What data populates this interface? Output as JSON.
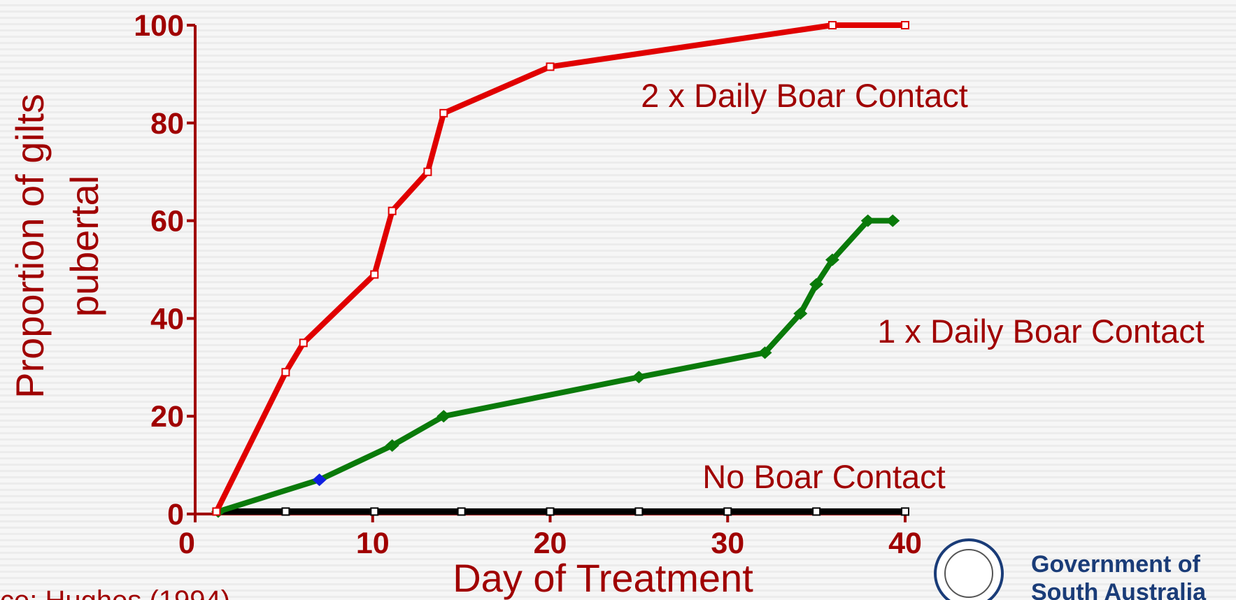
{
  "chart_data": {
    "type": "line",
    "xlabel": "Day of Treatment",
    "ylabel": [
      "Proportion of gilts",
      "pubertal"
    ],
    "xlim": [
      0,
      40
    ],
    "xticks": [
      0,
      10,
      20,
      30,
      40
    ],
    "ylim": [
      0,
      100
    ],
    "yticks": [
      0,
      20,
      40,
      60,
      80,
      100
    ],
    "series": [
      {
        "name": "2 x Daily Boar Contact",
        "color": "#e00000",
        "x": [
          1.2,
          5.1,
          6.1,
          10.1,
          11.1,
          13.1,
          14,
          20,
          35.9,
          40
        ],
        "values": [
          0.5,
          29,
          35,
          49,
          62,
          70,
          82,
          91.5,
          100,
          100
        ]
      },
      {
        "name": "1 x Daily Boar Contact",
        "color": "#0a7a0a",
        "x": [
          1.3,
          7,
          11.1,
          14,
          25,
          32.1,
          34.1,
          35,
          35.9,
          37.9,
          39.3
        ],
        "values": [
          0.5,
          7,
          14,
          20,
          28,
          33,
          41,
          47,
          52,
          60,
          60
        ]
      },
      {
        "name": "No Boar Contact",
        "color": "#000000",
        "x": [
          1.2,
          5.1,
          10.1,
          15,
          20,
          25,
          30,
          35,
          40
        ],
        "values": [
          0.5,
          0.5,
          0.5,
          0.5,
          0.5,
          0.5,
          0.5,
          0.5,
          0.5
        ]
      }
    ],
    "source": "ce: Hughes (1994)",
    "logo": [
      "Government of",
      "South Australia"
    ]
  }
}
